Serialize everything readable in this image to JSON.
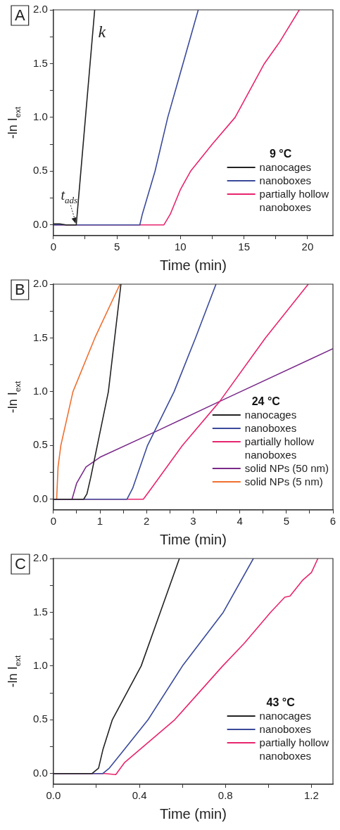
{
  "chart_data": [
    {
      "type": "line",
      "xlabel": "Time (min)",
      "ylabel": "-ln I$_{ext}$",
      "legend_title": "9 °C",
      "legend": "bottom right",
      "grid": false,
      "xlim": [
        0,
        22
      ],
      "ylim": [
        -0.1,
        2.0
      ],
      "xticks": [
        0,
        {
          "value": 2.5,
          "label": null
        },
        5,
        {
          "value": 7.5,
          "label": null
        },
        10,
        {
          "value": 12.5,
          "label": null
        },
        15,
        {
          "value": 17.5,
          "label": null
        },
        20
      ],
      "yticks": [
        {
          "value": 0,
          "label": "0.0"
        },
        {
          "value": 0.25,
          "label": null
        },
        {
          "value": 0.5,
          "label": "0.5"
        },
        {
          "value": 0.75,
          "label": null
        },
        {
          "value": 1,
          "label": "1.0"
        },
        {
          "value": 1.25,
          "label": null
        },
        {
          "value": 1.5,
          "label": "1.5"
        },
        {
          "value": 1.75,
          "label": null
        },
        {
          "value": 2,
          "label": "2.0"
        }
      ],
      "annotations": [
        "A",
        {
          "text": "k",
          "x": 3.2,
          "y": 1.8
        },
        {
          "text": "t$_{ads}$",
          "x": 1.8,
          "y": 0
        }
      ],
      "series": [
        {
          "name": "nanocages",
          "color": "#222222",
          "x": [
            0,
            0.5,
            1.0,
            1.5,
            1.8,
            3.25
          ],
          "values": [
            0.01,
            0.01,
            0.0,
            0.0,
            0.0,
            2.0
          ]
        },
        {
          "name": "nanoboxes",
          "color": "#3a4a9a",
          "x": [
            0,
            3,
            6.8,
            7.0,
            8.0,
            9.0,
            10.2,
            11.4
          ],
          "values": [
            0,
            0,
            0,
            0.1,
            0.5,
            1.0,
            1.5,
            2.0
          ]
        },
        {
          "name": "partially hollow nanoboxes",
          "color": "#e8256e",
          "x": [
            0,
            7,
            8.7,
            9.2,
            10.0,
            10.8,
            12.5,
            14.3,
            16.6,
            17.5,
            17.8,
            19.35
          ],
          "values": [
            0,
            0,
            0,
            0.1,
            0.33,
            0.5,
            0.75,
            1.0,
            1.5,
            1.65,
            1.7,
            2.0
          ]
        }
      ]
    },
    {
      "type": "line",
      "xlabel": "Time (min)",
      "ylabel": "-ln I$_{ext}$",
      "legend_title": "24 °C",
      "legend": "bottom right",
      "grid": false,
      "xlim": [
        0,
        6
      ],
      "ylim": [
        -0.1,
        2.0
      ],
      "xticks": [
        0,
        {
          "value": 0.5,
          "label": null
        },
        1,
        {
          "value": 1.5,
          "label": null
        },
        2,
        {
          "value": 2.5,
          "label": null
        },
        3,
        {
          "value": 3.5,
          "label": null
        },
        4,
        {
          "value": 4.5,
          "label": null
        },
        5,
        {
          "value": 5.5,
          "label": null
        },
        6
      ],
      "yticks": [
        {
          "value": 0,
          "label": "0.0"
        },
        {
          "value": 0.25,
          "label": null
        },
        {
          "value": 0.5,
          "label": "0.5"
        },
        {
          "value": 0.75,
          "label": null
        },
        {
          "value": 1,
          "label": "1.0"
        },
        {
          "value": 1.25,
          "label": null
        },
        {
          "value": 1.5,
          "label": "1.5"
        },
        {
          "value": 1.75,
          "label": null
        },
        {
          "value": 2,
          "label": "2.0"
        }
      ],
      "annotations": [
        "B"
      ],
      "series": [
        {
          "name": "nanocages",
          "color": "#222222",
          "x": [
            0,
            0.65,
            0.72,
            0.8,
            1.18,
            1.45
          ],
          "values": [
            0,
            0,
            0.05,
            0.2,
            1.0,
            2.0
          ]
        },
        {
          "name": "nanoboxes",
          "color": "#3a4a9a",
          "x": [
            0,
            1.58,
            1.7,
            2.02,
            2.59,
            3.05,
            3.49
          ],
          "values": [
            0,
            0,
            0.1,
            0.5,
            1.0,
            1.5,
            2.0
          ]
        },
        {
          "name": "partially hollow nanoboxes",
          "color": "#e8256e",
          "x": [
            0,
            1.93,
            2.1,
            2.77,
            3.57,
            4.55,
            5.47
          ],
          "values": [
            0,
            0,
            0.1,
            0.5,
            0.91,
            1.5,
            2.0
          ]
        },
        {
          "name": "solid NPs (50 nm)",
          "color": "#7a2a8a",
          "x": [
            0,
            0.4,
            0.5,
            0.7,
            1.0,
            2.25,
            3.57,
            6.0
          ],
          "values": [
            0,
            0,
            0.15,
            0.3,
            0.39,
            0.64,
            0.91,
            1.4
          ]
        },
        {
          "name": "solid NPs (5 nm)",
          "color": "#f07030",
          "x": [
            0,
            0.07,
            0.1,
            0.16,
            0.42,
            0.89,
            1.43
          ],
          "values": [
            0,
            0,
            0.3,
            0.5,
            1.0,
            1.5,
            2.0
          ]
        }
      ]
    },
    {
      "type": "line",
      "xlabel": "Time (min)",
      "ylabel": "-ln I$_{ext}$",
      "legend_title": "43 °C",
      "legend": "bottom right",
      "grid": false,
      "xlim": [
        0,
        1.3
      ],
      "ylim": [
        -0.1,
        2.0
      ],
      "xticks": [
        {
          "value": 0,
          "label": "0.0"
        },
        {
          "value": 0.2,
          "label": null
        },
        {
          "value": 0.4,
          "label": "0.4"
        },
        {
          "value": 0.6,
          "label": null
        },
        {
          "value": 0.8,
          "label": "0.8"
        },
        {
          "value": 1.0,
          "label": null
        },
        {
          "value": 1.2,
          "label": "1.2"
        }
      ],
      "yticks": [
        {
          "value": 0,
          "label": "0.0"
        },
        {
          "value": 0.25,
          "label": null
        },
        {
          "value": 0.5,
          "label": "0.5"
        },
        {
          "value": 0.75,
          "label": null
        },
        {
          "value": 1,
          "label": "1.0"
        },
        {
          "value": 1.25,
          "label": null
        },
        {
          "value": 1.5,
          "label": "1.5"
        },
        {
          "value": 1.75,
          "label": null
        },
        {
          "value": 2,
          "label": "2.0"
        }
      ],
      "annotations": [
        "C"
      ],
      "series": [
        {
          "name": "nanocages",
          "color": "#222222",
          "x": [
            0,
            0.18,
            0.21,
            0.23,
            0.274,
            0.408,
            0.497,
            0.586
          ],
          "values": [
            0,
            0,
            0.05,
            0.22,
            0.5,
            1.0,
            1.5,
            2.0
          ]
        },
        {
          "name": "nanoboxes",
          "color": "#3a4a9a",
          "x": [
            0,
            0.23,
            0.26,
            0.32,
            0.44,
            0.6,
            0.79,
            0.93
          ],
          "values": [
            0,
            0,
            0.05,
            0.2,
            0.5,
            1.0,
            1.5,
            2.0
          ]
        },
        {
          "name": "partially hollow nanoboxes",
          "color": "#e8256e",
          "x": [
            0,
            0.24,
            0.29,
            0.33,
            0.564,
            0.787,
            0.887,
            1.01,
            1.076,
            1.1,
            1.16,
            1.2,
            1.23
          ],
          "values": [
            0,
            0,
            -0.01,
            0.1,
            0.5,
            1.0,
            1.21,
            1.5,
            1.64,
            1.65,
            1.8,
            1.87,
            2.0
          ]
        }
      ]
    }
  ]
}
